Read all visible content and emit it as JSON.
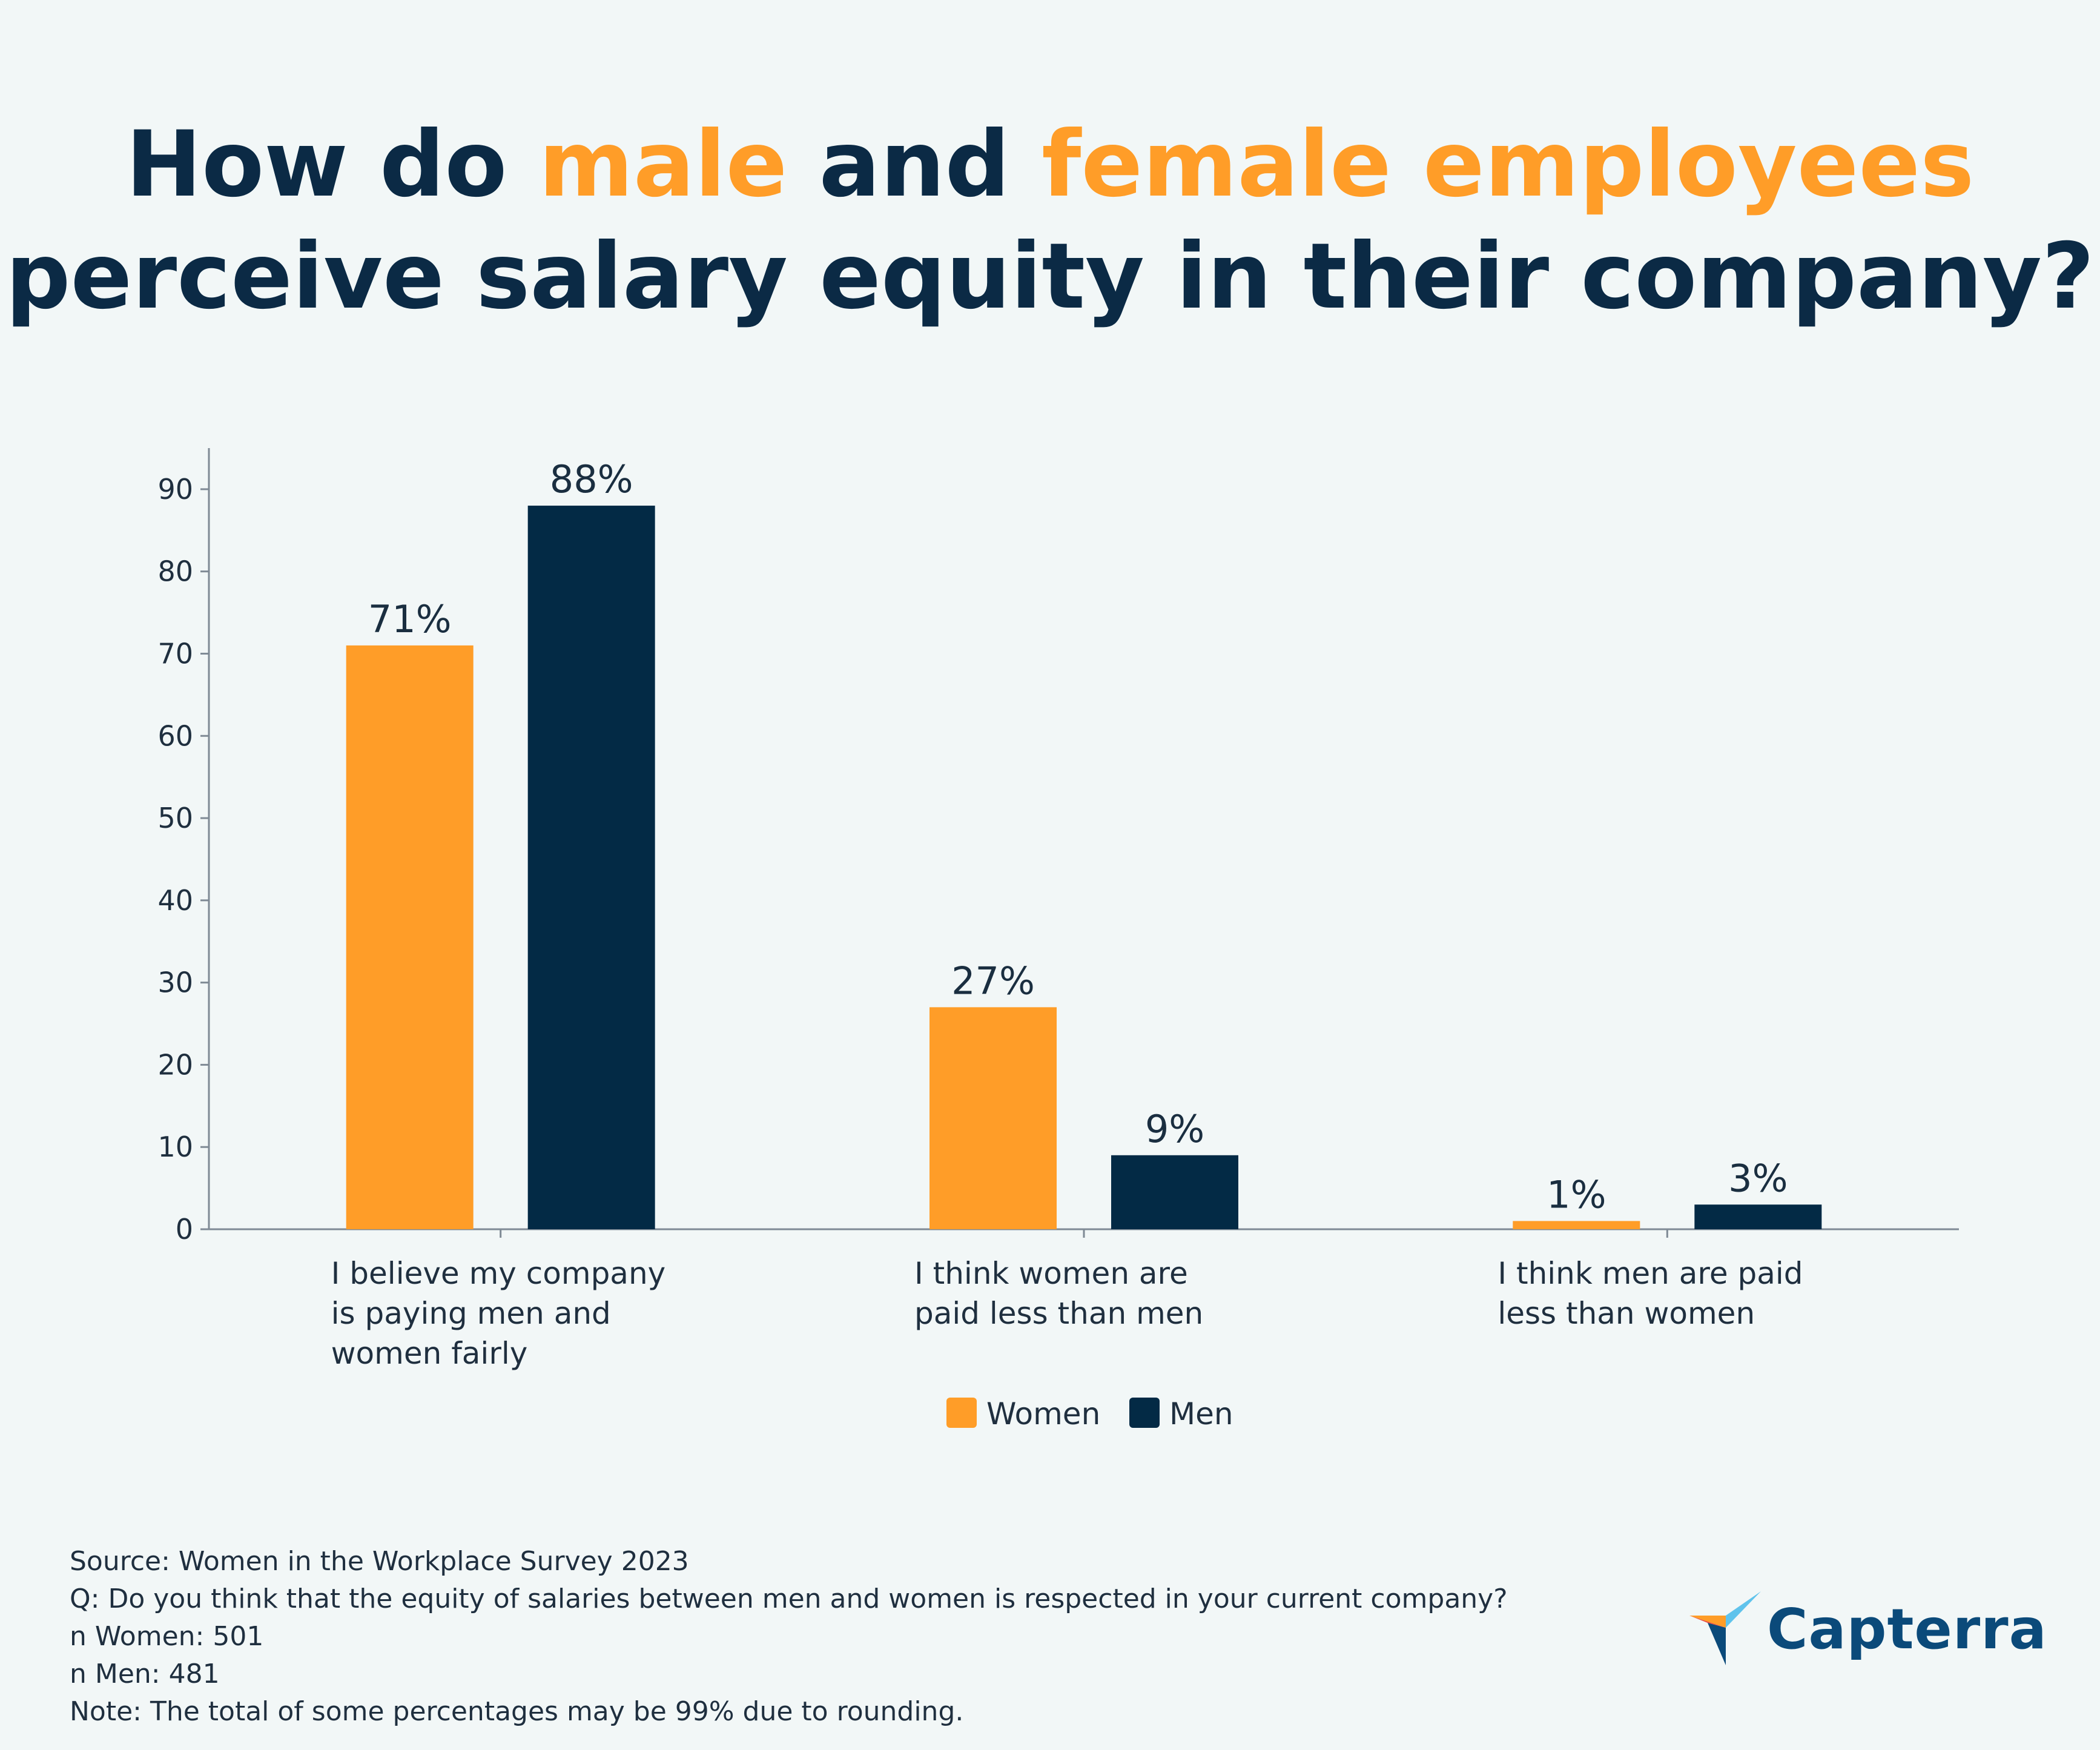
{
  "title": {
    "part1": "How do ",
    "highlight1": "male",
    "part2": " and ",
    "highlight2": "female employees",
    "line2": "perceive salary equity in their company?"
  },
  "colors": {
    "women": "#ff9d28",
    "men": "#032a45",
    "title": "#0b2a45",
    "highlight": "#ff9d28",
    "background": "#f2f7f7"
  },
  "chart_data": {
    "type": "bar",
    "categories": [
      [
        "I believe my company",
        "is paying men and",
        "women fairly"
      ],
      [
        "I think women are",
        "paid less than men"
      ],
      [
        "I think men are paid",
        "less than women"
      ]
    ],
    "series": [
      {
        "name": "Women",
        "values": [
          71,
          27,
          1
        ],
        "labels": [
          "71%",
          "27%",
          "1%"
        ]
      },
      {
        "name": "Men",
        "values": [
          88,
          9,
          3
        ],
        "labels": [
          "88%",
          "9%",
          "3%"
        ]
      }
    ],
    "yticks": [
      0,
      10,
      20,
      30,
      40,
      50,
      60,
      70,
      80,
      90
    ],
    "ylim": [
      0,
      95
    ],
    "grid": false,
    "legend": "bottom-center"
  },
  "footnotes": [
    "Source: Women in the Workplace Survey 2023",
    "Q: Do you think that the equity of salaries between men and women is respected in your current company?",
    "n Women: 501",
    "n Men: 481",
    "Note:  The total of some percentages may be 99% due to rounding."
  ],
  "brand": {
    "name": "Capterra",
    "icon": "capterra-logo-icon"
  }
}
